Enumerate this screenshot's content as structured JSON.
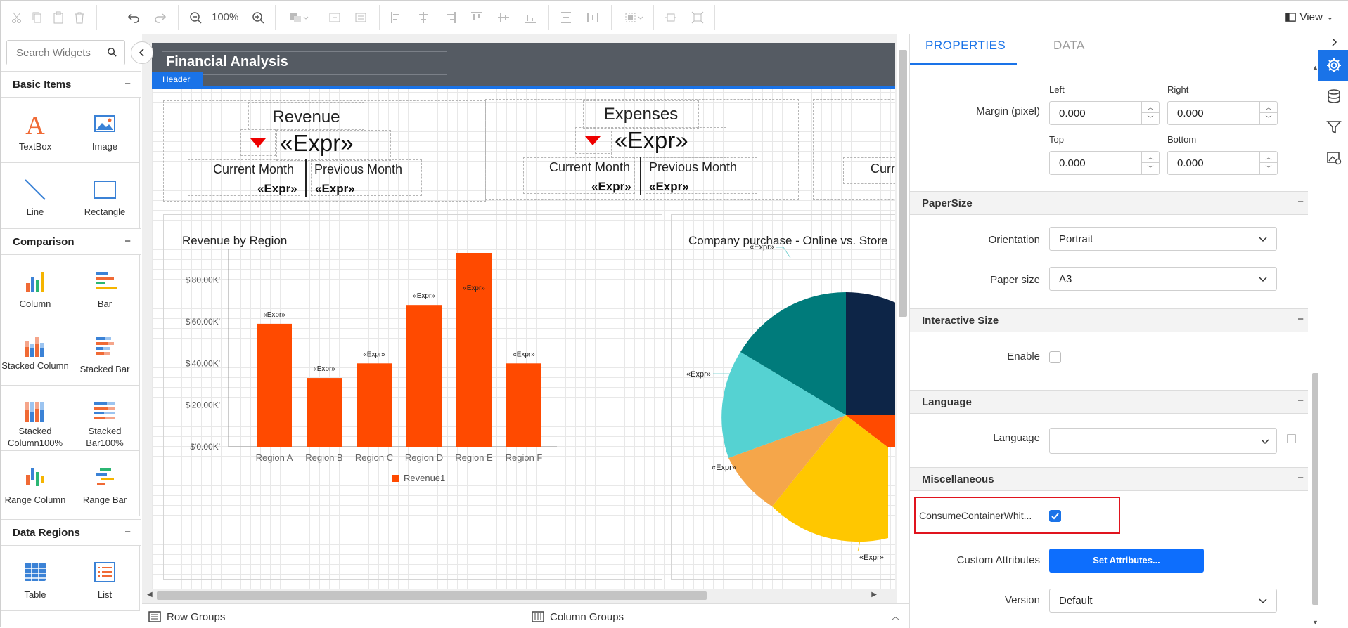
{
  "toolbar": {
    "zoom": "100%",
    "view_label": "View"
  },
  "left_panel": {
    "search_placeholder": "Search Widgets",
    "categories": [
      {
        "name": "Basic Items",
        "items": [
          "TextBox",
          "Image",
          "Line",
          "Rectangle"
        ]
      },
      {
        "name": "Comparison",
        "items": [
          "Column",
          "Bar",
          "Stacked Column",
          "Stacked Bar",
          "Stacked Column100%",
          "Stacked Bar100%",
          "Range Column",
          "Range Bar"
        ]
      },
      {
        "name": "Data Regions",
        "items": [
          "Table",
          "List"
        ]
      }
    ],
    "collapse_glyph": "−"
  },
  "report": {
    "title": "Financial Analysis",
    "header_tag": "Header",
    "kpi1": {
      "title": "Revenue",
      "expr": "«Expr»",
      "col1": "Current Month",
      "col2": "Previous Month",
      "val1": "«Expr»",
      "val2": "«Expr»"
    },
    "kpi2": {
      "title": "Expenses",
      "expr": "«Expr»",
      "col1": "Current Month",
      "col2": "Previous Month",
      "val1": "«Expr»",
      "val2": "«Expr»"
    },
    "kpi3": {
      "col1_partial": "Curr"
    },
    "pie_title": "Company purchase - Online vs. Store",
    "pie_labels": [
      "«Expr»",
      "«Expr»",
      "«Expr»",
      "«Expr»"
    ]
  },
  "chart_data": {
    "type": "bar",
    "title": "Revenue by Region",
    "categories": [
      "Region A",
      "Region B",
      "Region C",
      "Region D",
      "Region E",
      "Region F"
    ],
    "series": [
      {
        "name": "Revenue1",
        "values": [
          59,
          33,
          40,
          68,
          93,
          40
        ]
      }
    ],
    "data_labels": [
      "«Expr»",
      "«Expr»",
      "«Expr»",
      "«Expr»",
      "«Expr»",
      "«Expr»"
    ],
    "yticks": [
      "$'0.00K'",
      "$'20.00K'",
      "$'40.00K'",
      "$'60.00K'",
      "$'80.00K'"
    ],
    "ylim": [
      0,
      93
    ],
    "color": "#ff4a00"
  },
  "groups": {
    "row": "Row Groups",
    "column": "Column Groups"
  },
  "properties": {
    "tab_properties": "PROPERTIES",
    "tab_data": "DATA",
    "margin_label": "Margin (pixel)",
    "left_label": "Left",
    "right_label": "Right",
    "top_label": "Top",
    "bottom_label": "Bottom",
    "left_val": "0.000",
    "right_val": "0.000",
    "top_val": "0.000",
    "bottom_val": "0.000",
    "papersize_section": "PaperSize",
    "orientation_label": "Orientation",
    "orientation_val": "Portrait",
    "papersize_label": "Paper size",
    "papersize_val": "A3",
    "interactive_section": "Interactive Size",
    "enable_label": "Enable",
    "language_section": "Language",
    "language_label": "Language",
    "language_val": "",
    "misc_section": "Miscellaneous",
    "consume_label": "ConsumeContainerWhit...",
    "custom_attr_label": "Custom Attributes",
    "set_attr_button": "Set Attributes...",
    "version_label": "Version",
    "version_val": "Default"
  },
  "colors": {
    "accent": "#1a73e8",
    "bar": "#ff4a00",
    "highlight": "#e0141e"
  }
}
